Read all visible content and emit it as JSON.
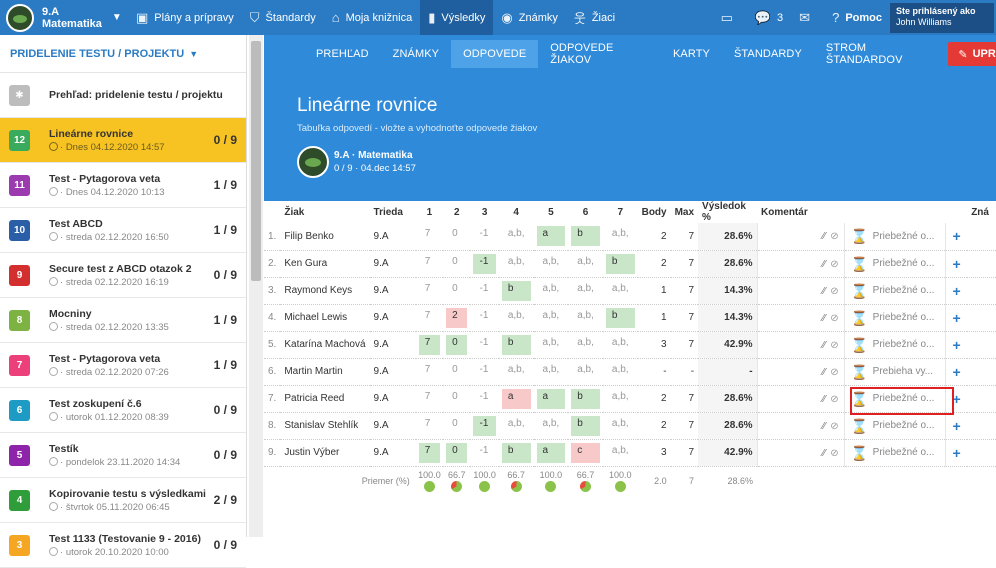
{
  "class": {
    "name": "9.A",
    "subject": "Matematika"
  },
  "nav": {
    "items": [
      {
        "label": "Plány a prípravy",
        "icon": "briefcase-icon"
      },
      {
        "label": "Štandardy",
        "icon": "shield-icon"
      },
      {
        "label": "Moja knižnica",
        "icon": "library-icon"
      },
      {
        "label": "Výsledky",
        "icon": "bar-chart-icon"
      },
      {
        "label": "Známky",
        "icon": "badge-icon"
      },
      {
        "label": "Žiaci",
        "icon": "students-icon"
      }
    ],
    "messages_count": "3",
    "help_label": "Pomoc",
    "user": {
      "caption": "Ste prihlásený ako",
      "name": "John Williams"
    }
  },
  "sidebar": {
    "header": "PRIDELENIE TESTU / PROJEKTU",
    "overview_label": "Prehľad: pridelenie testu / projektu",
    "items": [
      {
        "num": "12",
        "color": "#3aaa5c",
        "name": "Lineárne rovnice",
        "date": "Dnes 04.12.2020 14:57",
        "score": "0 / 9",
        "selected": true
      },
      {
        "num": "11",
        "color": "#9c3bb0",
        "name": "Test - Pytagorova veta",
        "date": "Dnes 04.12.2020 10:13",
        "score": "1 / 9"
      },
      {
        "num": "10",
        "color": "#2a5fa8",
        "name": "Test ABCD",
        "date": "streda 02.12.2020 16:50",
        "score": "1 / 9"
      },
      {
        "num": "9",
        "color": "#d32f2f",
        "name": "Secure test z ABCD otazok 2",
        "date": "streda 02.12.2020 16:19",
        "score": "0 / 9"
      },
      {
        "num": "8",
        "color": "#7cb342",
        "name": "Mocniny",
        "date": "streda 02.12.2020 13:35",
        "score": "1 / 9"
      },
      {
        "num": "7",
        "color": "#ec407a",
        "name": "Test - Pytagorova veta",
        "date": "streda 02.12.2020 07:26",
        "score": "1 / 9"
      },
      {
        "num": "6",
        "color": "#1e9bc4",
        "name": "Test zoskupení č.6",
        "date": "utorok 01.12.2020 08:39",
        "score": "0 / 9"
      },
      {
        "num": "5",
        "color": "#8e24aa",
        "name": "Testík",
        "date": "pondelok 23.11.2020 14:34",
        "score": "0 / 9"
      },
      {
        "num": "4",
        "color": "#2e9d3a",
        "name": "Kopirovanie testu s výsledkami",
        "date": "štvrtok 05.11.2020 06:45",
        "score": "2 / 9"
      },
      {
        "num": "3",
        "color": "#f5a623",
        "name": "Test 1133 (Testovanie 9 - 2016)",
        "date": "utorok 20.10.2020 10:00",
        "score": "0 / 9"
      }
    ]
  },
  "tabs": [
    "PREHĽAD",
    "ZNÁMKY",
    "ODPOVEDE",
    "ODPOVEDE ŽIAKOV",
    "KARTY",
    "ŠTANDARDY",
    "STROM ŠTANDARDOV"
  ],
  "active_tab": "ODPOVEDE",
  "edit_button": "UPRAVIŤ",
  "hero": {
    "title": "Lineárne rovnice",
    "subtitle": "Tabuľka odpovedí - vložte a vyhodnoťte odpovede žiakov",
    "class_label": "9.A · Matematika",
    "meta": "0 / 9 · 04.dec 14:57"
  },
  "table": {
    "headers": [
      "Žiak",
      "Trieda",
      "1",
      "2",
      "3",
      "4",
      "5",
      "6",
      "7",
      "Body",
      "Max",
      "Výsledok %",
      "Komentár",
      "",
      "",
      "Zná"
    ],
    "rows": [
      {
        "n": "1.",
        "name": "Filip Benko",
        "cls": "9.A",
        "a": [
          [
            "7",
            ""
          ],
          [
            "0",
            ""
          ],
          [
            "-1",
            ""
          ],
          [
            "a,b,",
            ""
          ],
          [
            "a",
            "ok"
          ],
          [
            "b",
            "ok"
          ],
          [
            "a,b,",
            ""
          ]
        ],
        "body": "2",
        "max": "7",
        "pct": "28.6%",
        "status": "Priebežné o..."
      },
      {
        "n": "2.",
        "name": "Ken Gura",
        "cls": "9.A",
        "a": [
          [
            "7",
            ""
          ],
          [
            "0",
            ""
          ],
          [
            "-1",
            "ok"
          ],
          [
            "a,b,",
            ""
          ],
          [
            "a,b,",
            ""
          ],
          [
            "a,b,",
            ""
          ],
          [
            "b",
            "ok"
          ]
        ],
        "body": "2",
        "max": "7",
        "pct": "28.6%",
        "status": "Priebežné o..."
      },
      {
        "n": "3.",
        "name": "Raymond Keys",
        "cls": "9.A",
        "a": [
          [
            "7",
            ""
          ],
          [
            "0",
            ""
          ],
          [
            "-1",
            ""
          ],
          [
            "b",
            "ok"
          ],
          [
            "a,b,",
            ""
          ],
          [
            "a,b,",
            ""
          ],
          [
            "a,b,",
            ""
          ]
        ],
        "body": "1",
        "max": "7",
        "pct": "14.3%",
        "status": "Priebežné o..."
      },
      {
        "n": "4.",
        "name": "Michael Lewis",
        "cls": "9.A",
        "a": [
          [
            "7",
            ""
          ],
          [
            "2",
            "bad"
          ],
          [
            "-1",
            ""
          ],
          [
            "a,b,",
            ""
          ],
          [
            "a,b,",
            ""
          ],
          [
            "a,b,",
            ""
          ],
          [
            "b",
            "ok"
          ]
        ],
        "body": "1",
        "max": "7",
        "pct": "14.3%",
        "status": "Priebežné o..."
      },
      {
        "n": "5.",
        "name": "Katarína Machová",
        "cls": "9.A",
        "a": [
          [
            "7",
            "ok"
          ],
          [
            "0",
            "ok"
          ],
          [
            "-1",
            ""
          ],
          [
            "b",
            "ok"
          ],
          [
            "a,b,",
            ""
          ],
          [
            "a,b,",
            ""
          ],
          [
            "a,b,",
            ""
          ]
        ],
        "body": "3",
        "max": "7",
        "pct": "42.9%",
        "status": "Priebežné o..."
      },
      {
        "n": "6.",
        "name": "Martin Martin",
        "cls": "9.A",
        "a": [
          [
            "7",
            ""
          ],
          [
            "0",
            ""
          ],
          [
            "-1",
            ""
          ],
          [
            "a,b,",
            ""
          ],
          [
            "a,b,",
            ""
          ],
          [
            "a,b,",
            ""
          ],
          [
            "a,b,",
            ""
          ]
        ],
        "body": "-",
        "max": "-",
        "pct": "-",
        "status": "Prebieha vy..."
      },
      {
        "n": "7.",
        "name": "Patricia Reed",
        "cls": "9.A",
        "a": [
          [
            "7",
            ""
          ],
          [
            "0",
            ""
          ],
          [
            "-1",
            ""
          ],
          [
            "a",
            "bad"
          ],
          [
            "a",
            "ok"
          ],
          [
            "b",
            "ok"
          ],
          [
            "a,b,",
            ""
          ]
        ],
        "body": "2",
        "max": "7",
        "pct": "28.6%",
        "status": "Priebežné o..."
      },
      {
        "n": "8.",
        "name": "Stanislav Stehlík",
        "cls": "9.A",
        "a": [
          [
            "7",
            ""
          ],
          [
            "0",
            ""
          ],
          [
            "-1",
            "ok"
          ],
          [
            "a,b,",
            ""
          ],
          [
            "a,b,",
            ""
          ],
          [
            "b",
            "ok"
          ],
          [
            "a,b,",
            ""
          ]
        ],
        "body": "2",
        "max": "7",
        "pct": "28.6%",
        "status": "Priebežné o..."
      },
      {
        "n": "9.",
        "name": "Justin Výber",
        "cls": "9.A",
        "a": [
          [
            "7",
            "ok"
          ],
          [
            "0",
            "ok"
          ],
          [
            "-1",
            ""
          ],
          [
            "b",
            "ok"
          ],
          [
            "a",
            "ok"
          ],
          [
            "c",
            "bad"
          ],
          [
            "a,b,",
            ""
          ]
        ],
        "body": "3",
        "max": "7",
        "pct": "42.9%",
        "status": "Priebežné o..."
      }
    ],
    "avg_label": "Priemer (%)",
    "avg": [
      "100.0",
      "66.7",
      "100.0",
      "66.7",
      "100.0",
      "66.7",
      "100.0"
    ],
    "avg_correct_fraction": [
      1.0,
      0.667,
      1.0,
      0.667,
      1.0,
      0.667,
      1.0
    ],
    "avg_body": "2.0",
    "avg_max": "7",
    "avg_pct": "28.6%"
  }
}
